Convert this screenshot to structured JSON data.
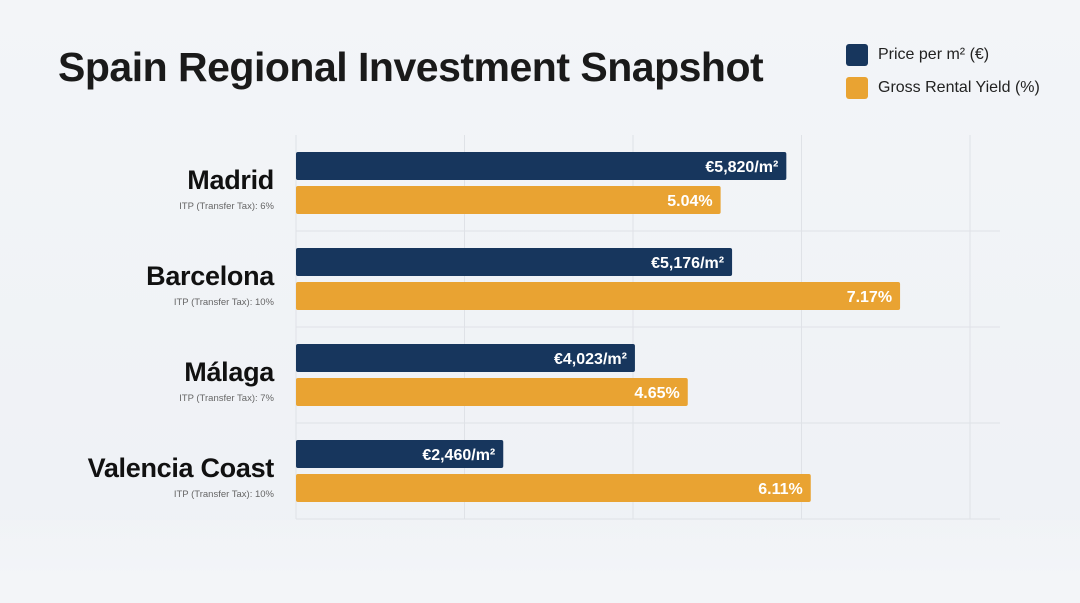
{
  "chart_data": {
    "type": "bar",
    "orientation": "horizontal",
    "title": "Spain Regional Investment Snapshot",
    "categories": [
      "Madrid",
      "Barcelona",
      "Málaga",
      "Valencia Coast"
    ],
    "subtitles": [
      "ITP (Transfer Tax): 6%",
      "ITP (Transfer Tax): 10%",
      "ITP (Transfer Tax): 7%",
      "ITP (Transfer Tax): 10%"
    ],
    "series": [
      {
        "name": "Price per m² (€)",
        "color": "#17365d",
        "values": [
          5820,
          5176,
          4023,
          2460
        ],
        "labels": [
          "€5,820/m²",
          "€5,176/m²",
          "€4,023/m²",
          "€2,460/m²"
        ],
        "xlim": [
          0,
          8000
        ]
      },
      {
        "name": "Gross Rental Yield (%)",
        "color": "#e9a332",
        "values": [
          5.04,
          7.17,
          4.65,
          6.11
        ],
        "labels": [
          "5.04%",
          "7.17%",
          "4.65%",
          "6.11%"
        ],
        "xlim": [
          0,
          8
        ]
      }
    ],
    "grid": true,
    "legend": "top-right"
  }
}
